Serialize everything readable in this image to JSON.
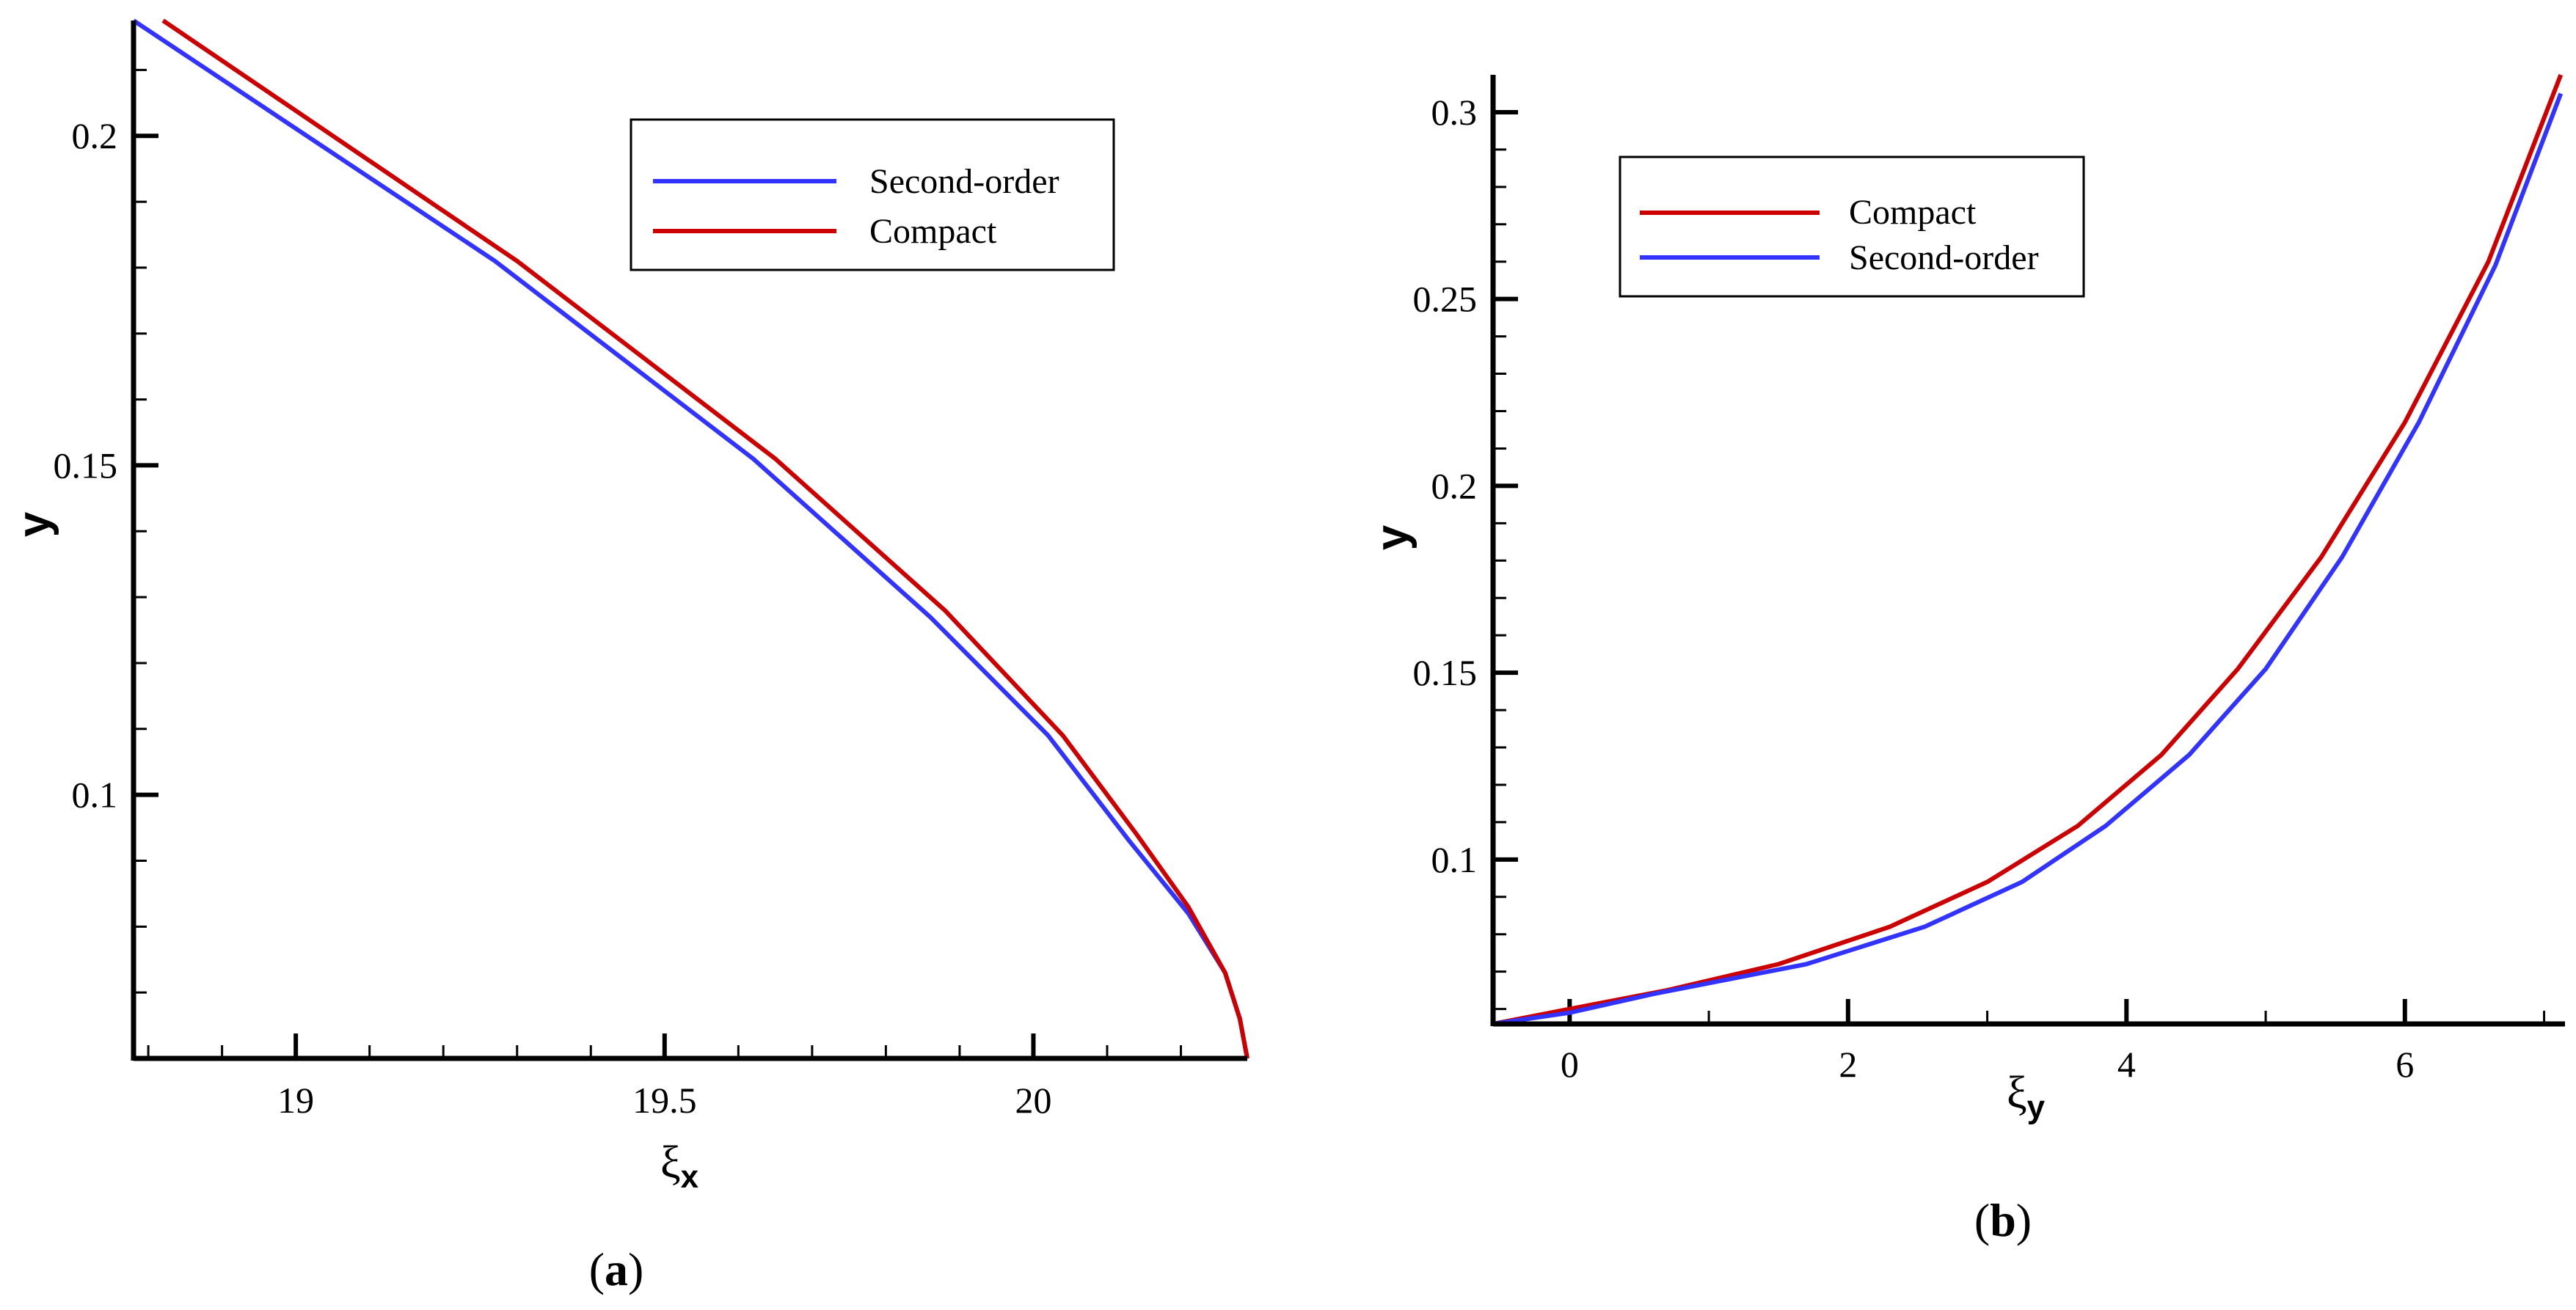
{
  "colors": {
    "compact": "#cc0000",
    "second_order": "#3333ff",
    "axis": "#000000"
  },
  "chart_data": [
    {
      "type": "line",
      "panel": "a",
      "caption_open": "(",
      "caption_letter": "a",
      "caption_close": ")",
      "xlabel_main": "ξ",
      "xlabel_sub": "x",
      "ylabel": "y",
      "xlim": [
        18.78,
        20.29
      ],
      "ylim": [
        0.06,
        0.2175
      ],
      "xticks": [
        19,
        19.5,
        20
      ],
      "xtick_labels": [
        "19",
        "19.5",
        "20"
      ],
      "xminor": [
        18.8,
        18.9,
        19.1,
        19.2,
        19.3,
        19.4,
        19.6,
        19.7,
        19.8,
        19.9,
        20.1,
        20.2
      ],
      "yticks": [
        0.1,
        0.15,
        0.2
      ],
      "ytick_labels": [
        "0.1",
        "0.15",
        "0.2"
      ],
      "yminor": [
        0.07,
        0.08,
        0.09,
        0.11,
        0.12,
        0.13,
        0.14,
        0.16,
        0.17,
        0.18,
        0.19,
        0.21
      ],
      "legend": [
        "Second-order",
        "Compact"
      ],
      "legend_position": "top-right",
      "series": [
        {
          "name": "Second-order",
          "color": "#3333ff",
          "x": [
            18.78,
            19.27,
            19.62,
            19.86,
            20.02,
            20.13,
            20.21,
            20.26,
            20.28,
            20.29
          ],
          "y": [
            0.2175,
            0.181,
            0.151,
            0.127,
            0.109,
            0.093,
            0.082,
            0.073,
            0.066,
            0.06
          ]
        },
        {
          "name": "Compact",
          "color": "#cc0000",
          "x": [
            18.82,
            19.3,
            19.65,
            19.88,
            20.04,
            20.14,
            20.21,
            20.26,
            20.28,
            20.29
          ],
          "y": [
            0.2175,
            0.181,
            0.151,
            0.128,
            0.109,
            0.094,
            0.083,
            0.073,
            0.066,
            0.06
          ]
        }
      ]
    },
    {
      "type": "line",
      "panel": "b",
      "caption_open": "(",
      "caption_letter": "b",
      "caption_close": ")",
      "xlabel_main": "ξ",
      "xlabel_sub": "y",
      "ylabel": "y",
      "xlim": [
        -0.55,
        7.15
      ],
      "ylim": [
        0.056,
        0.31
      ],
      "xticks": [
        0,
        2,
        4,
        6
      ],
      "xtick_labels": [
        "0",
        "2",
        "4",
        "6"
      ],
      "xminor": [
        1,
        3,
        5,
        7
      ],
      "yticks": [
        0.1,
        0.15,
        0.2,
        0.25,
        0.3
      ],
      "ytick_labels": [
        "0.1",
        "0.15",
        "0.2",
        "0.25",
        "0.3"
      ],
      "yminor": [
        0.06,
        0.07,
        0.08,
        0.09,
        0.11,
        0.12,
        0.13,
        0.14,
        0.16,
        0.17,
        0.18,
        0.19,
        0.21,
        0.22,
        0.23,
        0.24,
        0.26,
        0.27,
        0.28,
        0.29
      ],
      "legend": [
        "Compact",
        "Second-order"
      ],
      "legend_position": "top-left",
      "series": [
        {
          "name": "Compact",
          "color": "#cc0000",
          "x": [
            -0.55,
            0,
            0.7,
            1.5,
            2.3,
            3.0,
            3.65,
            4.25,
            4.8,
            5.4,
            6.0,
            6.6,
            7.12
          ],
          "y": [
            0.056,
            0.06,
            0.065,
            0.072,
            0.082,
            0.094,
            0.109,
            0.128,
            0.151,
            0.181,
            0.217,
            0.26,
            0.31
          ]
        },
        {
          "name": "Second-order",
          "color": "#3333ff",
          "x": [
            -0.55,
            0,
            0.6,
            1.7,
            2.55,
            3.25,
            3.85,
            4.45,
            5.0,
            5.55,
            6.1,
            6.65,
            7.12
          ],
          "y": [
            0.056,
            0.059,
            0.064,
            0.072,
            0.082,
            0.094,
            0.109,
            0.128,
            0.151,
            0.181,
            0.217,
            0.259,
            0.305
          ]
        }
      ]
    }
  ]
}
